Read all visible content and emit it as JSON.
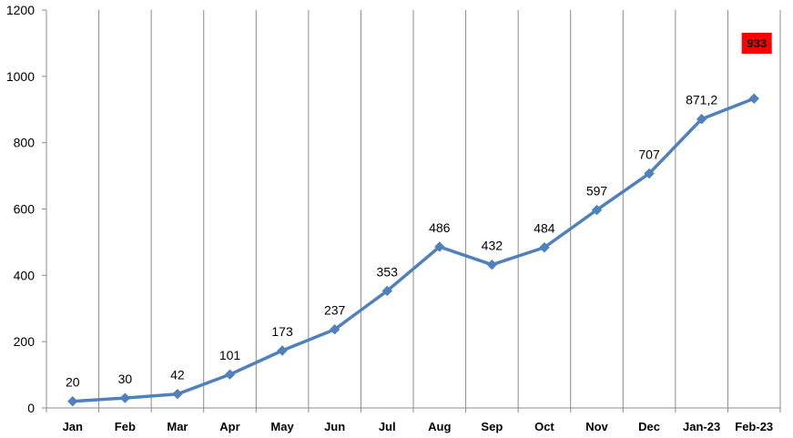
{
  "chart_data": {
    "type": "line",
    "categories": [
      "Jan",
      "Feb",
      "Mar",
      "Apr",
      "May",
      "Jun",
      "Jul",
      "Aug",
      "Sep",
      "Oct",
      "Nov",
      "Dec",
      "Jan-23",
      "Feb-23"
    ],
    "series": [
      {
        "values": [
          20,
          30,
          42,
          101,
          173,
          237,
          353,
          486,
          432,
          484,
          597,
          707,
          871.2,
          933
        ],
        "data_labels": [
          "20",
          "30",
          "42",
          "101",
          "173",
          "237",
          "353",
          "486",
          "432",
          "484",
          "597",
          "707",
          "871,2",
          "933"
        ],
        "color": "#4F81BD",
        "marker": "diamond"
      }
    ],
    "title": "",
    "xlabel": "",
    "ylabel": "",
    "ylim": [
      0,
      1200
    ],
    "yticks": [
      "0",
      "200",
      "400",
      "600",
      "800",
      "1000",
      "1200"
    ],
    "grid": "vertical",
    "legend": "none",
    "highlight": {
      "index": 13,
      "background": "#FF0000"
    }
  }
}
